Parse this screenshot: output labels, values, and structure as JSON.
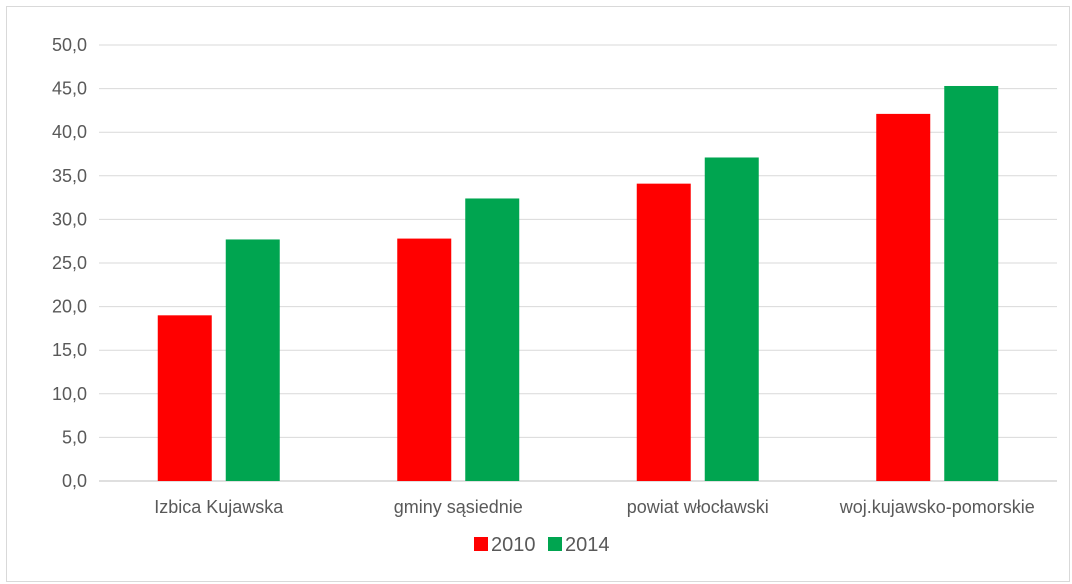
{
  "chart_data": {
    "type": "bar",
    "categories": [
      "Izbica Kujawska",
      "gminy sąsiednie",
      "powiat włocławski",
      "woj.kujawsko-pomorskie"
    ],
    "series": [
      {
        "name": "2010",
        "color": "#ff0000",
        "values": [
          19.0,
          27.8,
          34.1,
          42.1
        ]
      },
      {
        "name": "2014",
        "color": "#00a550",
        "values": [
          27.7,
          32.4,
          37.1,
          45.3
        ]
      }
    ],
    "ylim": [
      0,
      50
    ],
    "yticks": [
      "0,0",
      "5,0",
      "10,0",
      "15,0",
      "20,0",
      "25,0",
      "30,0",
      "35,0",
      "40,0",
      "45,0",
      "50,0"
    ],
    "grid": true,
    "legend_position": "bottom"
  }
}
